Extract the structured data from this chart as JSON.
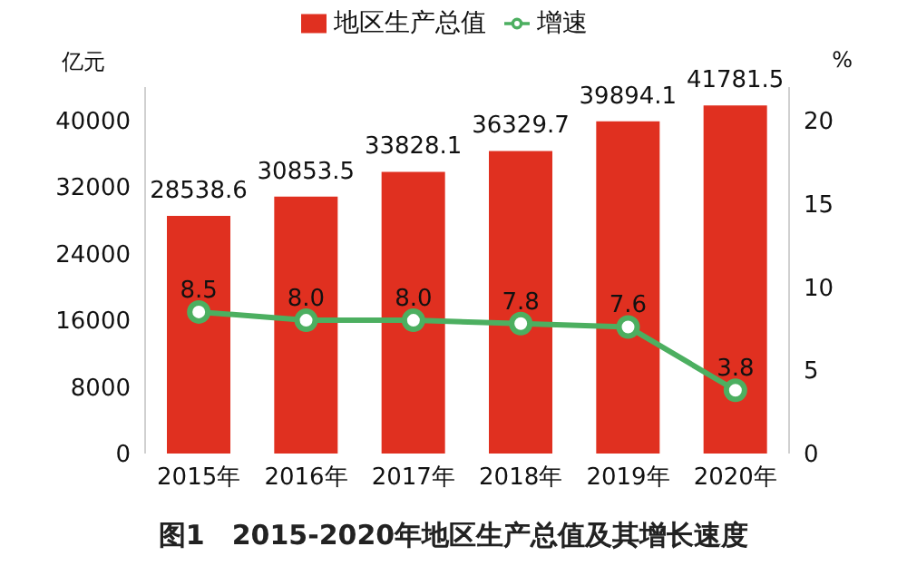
{
  "chart_data": {
    "type": "bar",
    "title": "图1　2015-2020年地区生产总值及其增长速度",
    "ylabel": "亿元",
    "y2label": "%",
    "categories": [
      "2015年",
      "2016年",
      "2017年",
      "2018年",
      "2019年",
      "2020年"
    ],
    "series": [
      {
        "name": "地区生产总值",
        "color": "#e03020",
        "values": [
          28538.6,
          30853.5,
          33828.1,
          36329.7,
          39894.1,
          41781.5
        ],
        "value_labels": [
          "28538.6",
          "30853.5",
          "33828.1",
          "36329.7",
          "39894.1",
          "41781.5"
        ]
      },
      {
        "name": "增速",
        "type": "line",
        "axis": "y2",
        "color": "#4caf60",
        "values": [
          8.5,
          8.0,
          8.0,
          7.8,
          7.6,
          3.8
        ],
        "value_labels": [
          "8.5",
          "8.0",
          "8.0",
          "7.8",
          "7.6",
          "3.8"
        ]
      }
    ],
    "ylim": [
      0,
      44000
    ],
    "yticks": [
      0,
      8000,
      16000,
      24000,
      32000,
      40000
    ],
    "y2lim": [
      0,
      22
    ],
    "y2ticks": [
      0,
      5,
      10,
      15,
      20
    ],
    "legend": "top",
    "marker": "circle"
  }
}
